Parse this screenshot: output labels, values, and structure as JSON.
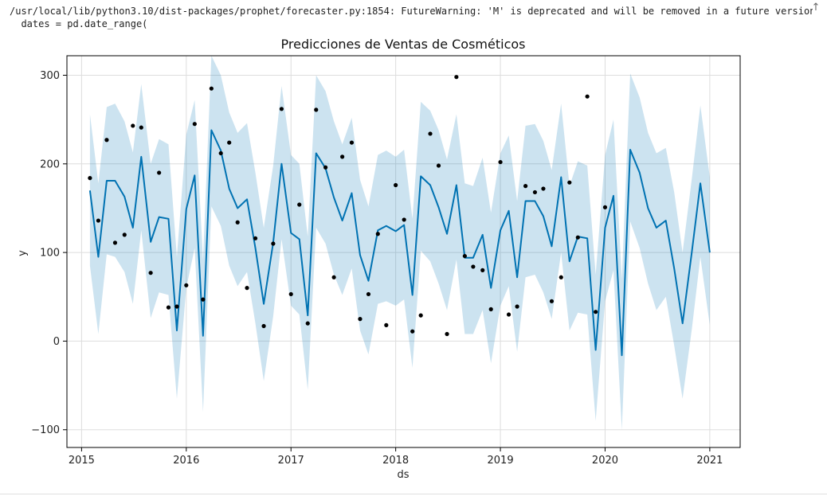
{
  "output": {
    "warning_line1": "/usr/local/lib/python3.10/dist-packages/prophet/forecaster.py:1854: FutureWarning: 'M' is deprecated and will be removed in a future version",
    "warning_line2": "  dates = pd.date_range("
  },
  "colors": {
    "line": "#0072B2",
    "band": "#0072B2",
    "points": "#000000",
    "grid": "#dddddd"
  },
  "chart_data": {
    "type": "line",
    "title": "Predicciones de Ventas de Cosméticos",
    "xlabel": "ds",
    "ylabel": "y",
    "xlim": [
      2014.86,
      2021.29
    ],
    "ylim": [
      -120,
      322
    ],
    "x_ticks": [
      2015,
      2016,
      2017,
      2018,
      2019,
      2020,
      2021
    ],
    "x_tick_labels": [
      "2015",
      "2016",
      "2017",
      "2018",
      "2019",
      "2020",
      "2021"
    ],
    "y_ticks": [
      -100,
      0,
      100,
      200,
      300
    ],
    "y_tick_labels": [
      "−100",
      "0",
      "100",
      "200",
      "300"
    ],
    "grid": true,
    "legend": "none",
    "series": [
      {
        "kind": "forecast",
        "x": [
          2015.08,
          2015.16,
          2015.24,
          2015.32,
          2015.41,
          2015.49,
          2015.57,
          2015.66,
          2015.74,
          2015.83,
          2015.91,
          2016.0,
          2016.08,
          2016.16,
          2016.24,
          2016.33,
          2016.41,
          2016.49,
          2016.58,
          2016.66,
          2016.74,
          2016.83,
          2016.91,
          2017.0,
          2017.08,
          2017.16,
          2017.24,
          2017.33,
          2017.41,
          2017.49,
          2017.58,
          2017.66,
          2017.74,
          2017.83,
          2017.91,
          2018.0,
          2018.08,
          2018.16,
          2018.24,
          2018.33,
          2018.41,
          2018.49,
          2018.58,
          2018.66,
          2018.74,
          2018.83,
          2018.91,
          2019.0,
          2019.08,
          2019.16,
          2019.24,
          2019.33,
          2019.41,
          2019.49,
          2019.58,
          2019.66,
          2019.74,
          2019.83,
          2019.91,
          2020.0,
          2020.08,
          2020.16,
          2020.24,
          2020.33,
          2020.41,
          2020.49,
          2020.58,
          2020.66,
          2020.74,
          2020.83,
          2020.91,
          2021.0
        ],
        "yhat": [
          170,
          95,
          181,
          181,
          163,
          128,
          208,
          112,
          140,
          138,
          12,
          149,
          187,
          6,
          238,
          215,
          172,
          150,
          160,
          105,
          42,
          111,
          200,
          122,
          115,
          29,
          212,
          195,
          162,
          136,
          167,
          97,
          68,
          125,
          130,
          124,
          131,
          52,
          186,
          176,
          151,
          121,
          176,
          94,
          94,
          120,
          60,
          125,
          147,
          72,
          158,
          158,
          141,
          107,
          185,
          90,
          118,
          116,
          -10,
          128,
          164,
          -16,
          216,
          190,
          150,
          128,
          136,
          82,
          20,
          102,
          178,
          100
        ],
        "yhat_lower": [
          85,
          8,
          98,
          95,
          78,
          42,
          125,
          26,
          55,
          52,
          -65,
          60,
          105,
          -80,
          152,
          130,
          85,
          62,
          78,
          20,
          -45,
          28,
          115,
          40,
          30,
          -55,
          128,
          110,
          75,
          52,
          82,
          12,
          -15,
          42,
          45,
          40,
          47,
          -30,
          102,
          90,
          65,
          35,
          92,
          8,
          8,
          35,
          -25,
          40,
          62,
          -12,
          72,
          75,
          55,
          25,
          100,
          12,
          32,
          30,
          -90,
          45,
          80,
          -100,
          135,
          105,
          65,
          35,
          50,
          -5,
          -65,
          15,
          95,
          18
        ],
        "yhat_upper": [
          256,
          178,
          264,
          268,
          248,
          213,
          290,
          200,
          228,
          222,
          95,
          233,
          272,
          92,
          322,
          300,
          258,
          235,
          246,
          190,
          128,
          198,
          288,
          210,
          200,
          118,
          300,
          282,
          248,
          222,
          252,
          182,
          152,
          210,
          215,
          208,
          216,
          138,
          270,
          260,
          238,
          205,
          256,
          178,
          175,
          207,
          145,
          212,
          232,
          158,
          243,
          245,
          226,
          193,
          268,
          175,
          203,
          198,
          75,
          210,
          250,
          70,
          302,
          275,
          235,
          212,
          218,
          168,
          100,
          185,
          266,
          185
        ]
      },
      {
        "kind": "observed",
        "name": "y",
        "x": [
          2015.08,
          2015.16,
          2015.24,
          2015.32,
          2015.41,
          2015.49,
          2015.57,
          2015.66,
          2015.74,
          2015.83,
          2015.91,
          2016.0,
          2016.08,
          2016.16,
          2016.24,
          2016.33,
          2016.41,
          2016.49,
          2016.58,
          2016.66,
          2016.74,
          2016.83,
          2016.91,
          2017.0,
          2017.08,
          2017.16,
          2017.24,
          2017.33,
          2017.41,
          2017.49,
          2017.58,
          2017.66,
          2017.74,
          2017.83,
          2017.91,
          2018.0,
          2018.08,
          2018.16,
          2018.24,
          2018.33,
          2018.41,
          2018.49,
          2018.58,
          2018.66,
          2018.74,
          2018.83,
          2018.91,
          2019.0,
          2019.08,
          2019.16,
          2019.24,
          2019.33,
          2019.41,
          2019.49,
          2019.58,
          2019.66,
          2019.74,
          2019.83,
          2019.91,
          2020.0
        ],
        "y": [
          184,
          136,
          227,
          111,
          120,
          243,
          241,
          77,
          190,
          38,
          39,
          63,
          245,
          47,
          285,
          212,
          224,
          134,
          60,
          116,
          17,
          110,
          262,
          53,
          154,
          20,
          261,
          196,
          72,
          208,
          224,
          25,
          53,
          121,
          18,
          176,
          137,
          11,
          29,
          234,
          198,
          8,
          298,
          96,
          84,
          80,
          36,
          202,
          30,
          39,
          175,
          168,
          172,
          45,
          72,
          179,
          117,
          276,
          33,
          151
        ]
      }
    ]
  }
}
